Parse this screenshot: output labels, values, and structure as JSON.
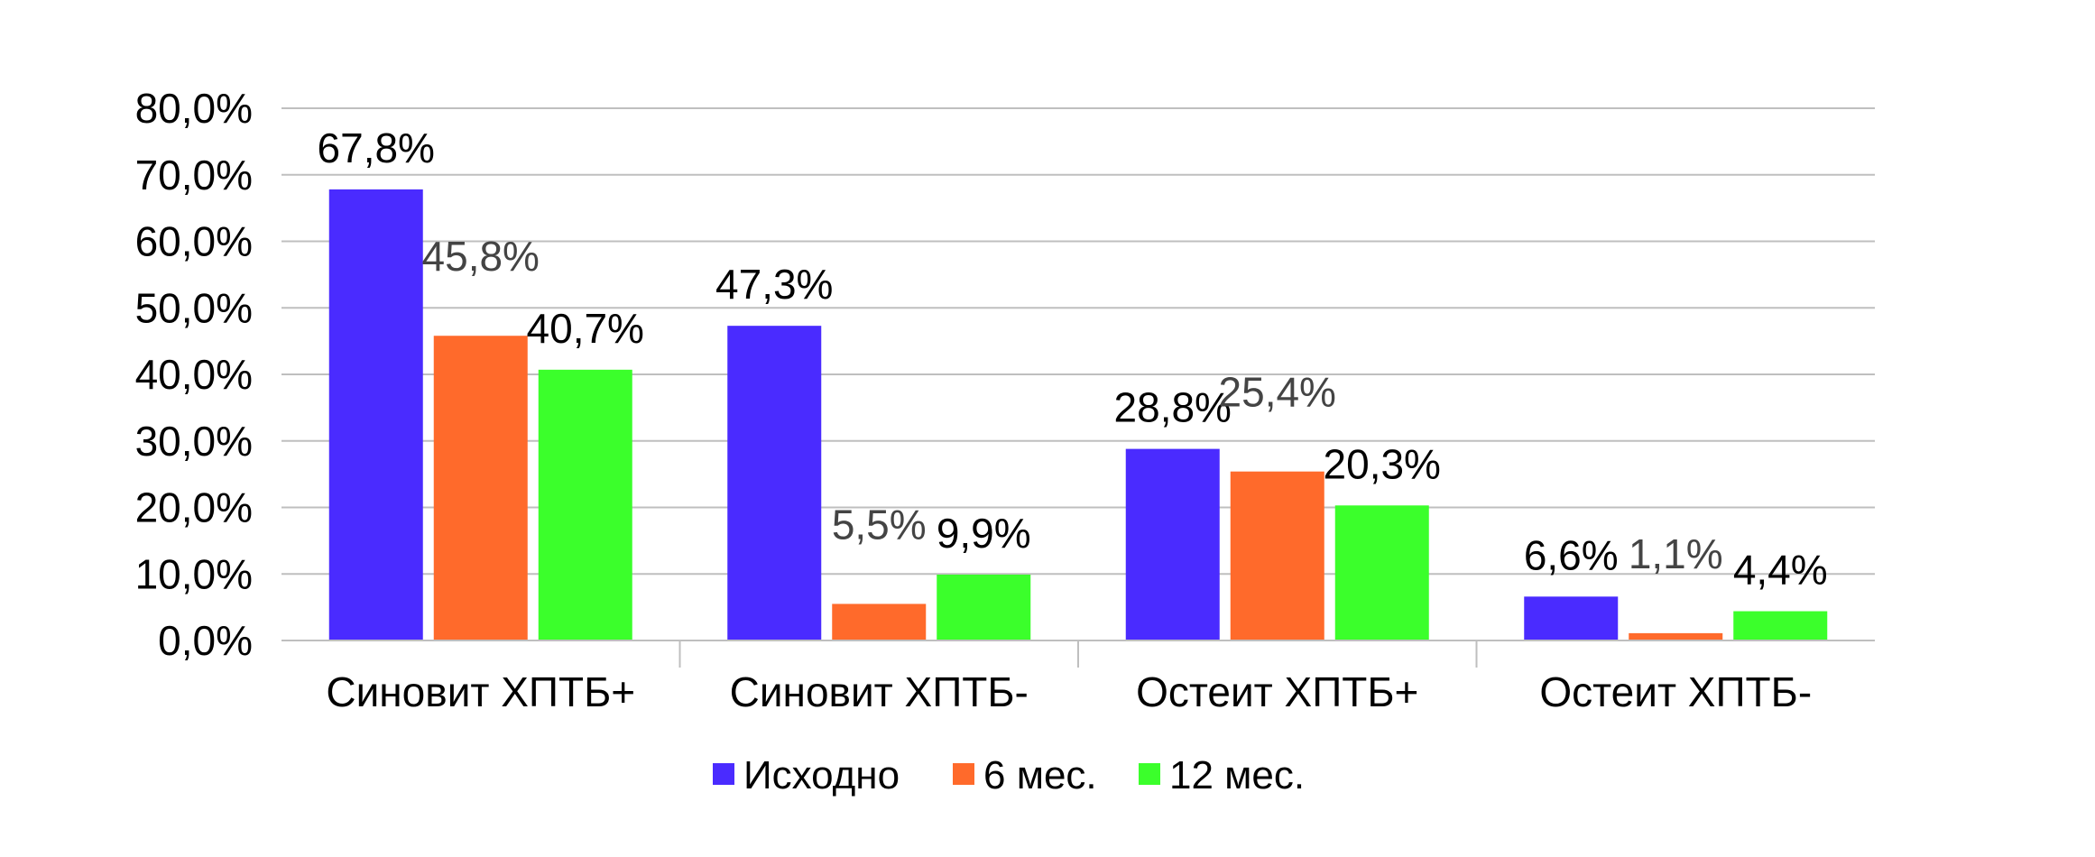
{
  "chart_data": {
    "type": "bar",
    "title": "",
    "xlabel": "",
    "ylabel": "",
    "ylim": [
      0,
      80
    ],
    "yticks": [
      "0,0%",
      "10,0%",
      "20,0%",
      "30,0%",
      "40,0%",
      "50,0%",
      "60,0%",
      "70,0%",
      "80,0%"
    ],
    "grid": true,
    "legend_position": "bottom",
    "categories": [
      "Синовит ХПТБ+",
      "Синовит ХПТБ-",
      "Остеит ХПТБ+",
      "Остеит ХПТБ-"
    ],
    "series": [
      {
        "name": "Исходно",
        "color": "#4A2BFF",
        "values": [
          67.8,
          47.3,
          28.8,
          6.6
        ],
        "labels": [
          "67,8%",
          "47,3%",
          "28,8%",
          "6,6%"
        ],
        "label_color": "#000000"
      },
      {
        "name": "6 мес.",
        "color": "#FF6A2B",
        "values": [
          45.8,
          5.5,
          25.4,
          1.1
        ],
        "labels": [
          "45,8%",
          "5,5%",
          "25,4%",
          "1,1%"
        ],
        "label_color": "#444444"
      },
      {
        "name": "12 мес.",
        "color": "#3BFF2B",
        "values": [
          40.7,
          9.9,
          20.3,
          4.4
        ],
        "labels": [
          "40,7%",
          "9,9%",
          "20,3%",
          "4,4%"
        ],
        "label_color": "#000000"
      }
    ]
  }
}
